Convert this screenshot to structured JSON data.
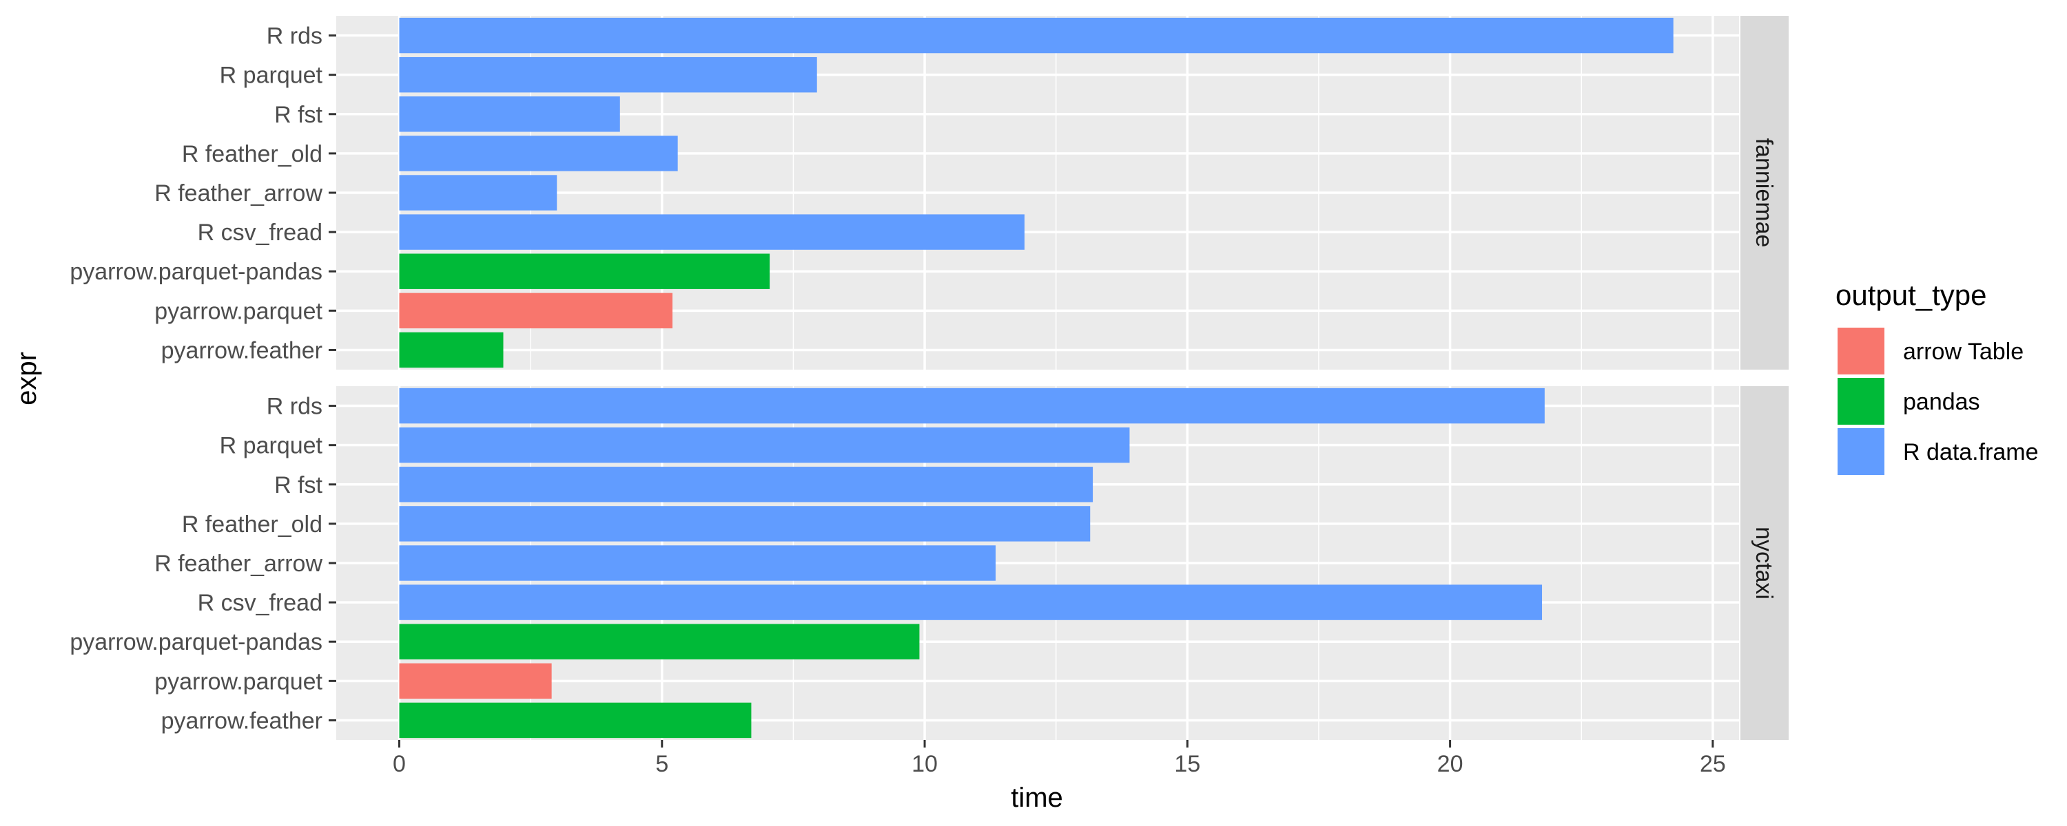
{
  "chart_data": {
    "type": "bar",
    "orientation": "horizontal",
    "xlabel": "time",
    "ylabel": "expr",
    "xlim": [
      -1.2,
      25.5
    ],
    "xticks": [
      0,
      5,
      10,
      15,
      20,
      25
    ],
    "grid": true,
    "legend": {
      "title": "output_type",
      "position": "right",
      "entries": [
        {
          "label": "arrow Table",
          "color": "#F8766D"
        },
        {
          "label": "pandas",
          "color": "#00BA38"
        },
        {
          "label": "R data.frame",
          "color": "#619CFF"
        }
      ]
    },
    "categories": [
      "R rds",
      "R parquet",
      "R fst",
      "R feather_old",
      "R feather_arrow",
      "R csv_fread",
      "pyarrow.parquet-pandas",
      "pyarrow.parquet",
      "pyarrow.feather"
    ],
    "category_output_type": [
      "R data.frame",
      "R data.frame",
      "R data.frame",
      "R data.frame",
      "R data.frame",
      "R data.frame",
      "pandas",
      "arrow Table",
      "pandas"
    ],
    "facets": [
      {
        "name": "fanniemae",
        "values": [
          24.25,
          7.95,
          4.2,
          5.3,
          3.0,
          11.9,
          7.05,
          5.2,
          1.98
        ]
      },
      {
        "name": "nyctaxi",
        "values": [
          21.8,
          13.9,
          13.2,
          13.15,
          11.35,
          21.75,
          9.9,
          2.9,
          6.7
        ]
      }
    ]
  }
}
